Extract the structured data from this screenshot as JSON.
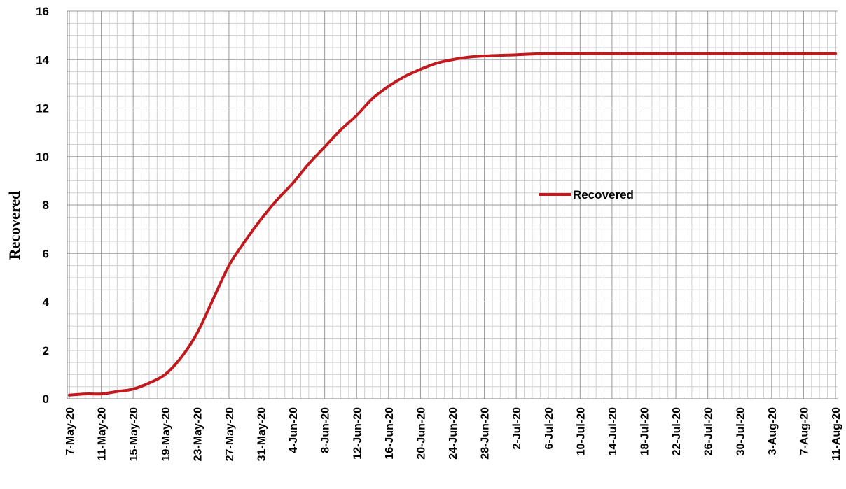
{
  "chart_data": {
    "type": "line",
    "title": "",
    "xlabel": "",
    "ylabel": "Recovered",
    "ylim": [
      0,
      16
    ],
    "y_ticks": [
      0,
      2,
      4,
      6,
      8,
      10,
      12,
      14,
      16
    ],
    "x_tick_labels": [
      "7-May-20",
      "11-May-20",
      "15-May-20",
      "19-May-20",
      "23-May-20",
      "27-May-20",
      "31-May-20",
      "4-Jun-20",
      "8-Jun-20",
      "12-Jun-20",
      "16-Jun-20",
      "20-Jun-20",
      "24-Jun-20",
      "28-Jun-20",
      "2-Jul-20",
      "6-Jul-20",
      "10-Jul-20",
      "14-Jul-20",
      "18-Jul-20",
      "22-Jul-20",
      "26-Jul-20",
      "30-Jul-20",
      "3-Aug-20",
      "7-Aug-20",
      "11-Aug-20"
    ],
    "x_range": [
      "7-May-20",
      "11-Aug-20"
    ],
    "grid": true,
    "legend_position": "center-right",
    "series": [
      {
        "name": "Recovered",
        "color": "#c0191e",
        "points": [
          [
            "7-May-20",
            0.15
          ],
          [
            "9-May-20",
            0.2
          ],
          [
            "11-May-20",
            0.2
          ],
          [
            "13-May-20",
            0.3
          ],
          [
            "15-May-20",
            0.4
          ],
          [
            "17-May-20",
            0.65
          ],
          [
            "19-May-20",
            1.0
          ],
          [
            "21-May-20",
            1.7
          ],
          [
            "23-May-20",
            2.7
          ],
          [
            "25-May-20",
            4.1
          ],
          [
            "27-May-20",
            5.5
          ],
          [
            "29-May-20",
            6.5
          ],
          [
            "31-May-20",
            7.4
          ],
          [
            "2-Jun-20",
            8.2
          ],
          [
            "4-Jun-20",
            8.9
          ],
          [
            "6-Jun-20",
            9.7
          ],
          [
            "8-Jun-20",
            10.4
          ],
          [
            "10-Jun-20",
            11.1
          ],
          [
            "12-Jun-20",
            11.7
          ],
          [
            "14-Jun-20",
            12.4
          ],
          [
            "16-Jun-20",
            12.9
          ],
          [
            "18-Jun-20",
            13.3
          ],
          [
            "20-Jun-20",
            13.6
          ],
          [
            "22-Jun-20",
            13.85
          ],
          [
            "24-Jun-20",
            14.0
          ],
          [
            "26-Jun-20",
            14.1
          ],
          [
            "28-Jun-20",
            14.15
          ],
          [
            "2-Jul-20",
            14.2
          ],
          [
            "6-Jul-20",
            14.25
          ],
          [
            "14-Jul-20",
            14.25
          ],
          [
            "22-Jul-20",
            14.25
          ],
          [
            "30-Jul-20",
            14.25
          ],
          [
            "7-Aug-20",
            14.25
          ],
          [
            "11-Aug-20",
            14.25
          ]
        ]
      }
    ]
  }
}
